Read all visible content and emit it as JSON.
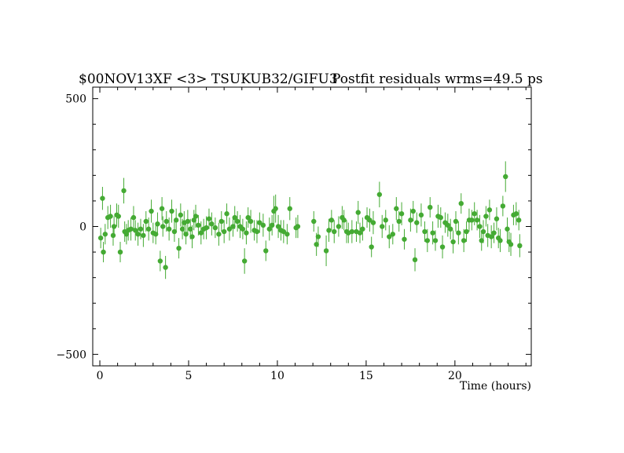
{
  "chart_data": {
    "type": "scatter",
    "title_left": "$00NOV13XF <3> TSUKUB32/GIFU3",
    "title_right": "Postfit residuals wrms=49.5  ps",
    "xlabel": "Time (hours)",
    "ylabel": "",
    "xlim": [
      -0.4,
      24.3
    ],
    "ylim": [
      -545,
      545
    ],
    "xticks": [
      0,
      5,
      10,
      15,
      20
    ],
    "yticks": [
      -500,
      0,
      500
    ],
    "tick_labels_x": [
      "0",
      "5",
      "10",
      "15",
      "20"
    ],
    "tick_labels_y": [
      "−500",
      "0",
      "500"
    ],
    "grid": false,
    "color": "#44aa33",
    "points": [
      [
        0.05,
        -45,
        40
      ],
      [
        0.15,
        110,
        45
      ],
      [
        0.2,
        -100,
        40
      ],
      [
        0.3,
        -30,
        40
      ],
      [
        0.45,
        35,
        45
      ],
      [
        0.6,
        40,
        45
      ],
      [
        0.75,
        -35,
        40
      ],
      [
        0.8,
        0,
        40
      ],
      [
        0.95,
        45,
        45
      ],
      [
        1.05,
        40,
        45
      ],
      [
        1.15,
        -100,
        40
      ],
      [
        1.35,
        140,
        50
      ],
      [
        1.4,
        -20,
        40
      ],
      [
        1.5,
        -30,
        40
      ],
      [
        1.6,
        -15,
        40
      ],
      [
        1.75,
        -10,
        45
      ],
      [
        1.9,
        35,
        45
      ],
      [
        2.0,
        -15,
        40
      ],
      [
        2.15,
        -30,
        45
      ],
      [
        2.3,
        -10,
        40
      ],
      [
        2.45,
        -35,
        45
      ],
      [
        2.6,
        20,
        40
      ],
      [
        2.75,
        -10,
        45
      ],
      [
        2.9,
        60,
        45
      ],
      [
        3.0,
        -25,
        40
      ],
      [
        3.15,
        -30,
        40
      ],
      [
        3.25,
        10,
        45
      ],
      [
        3.4,
        -135,
        40
      ],
      [
        3.5,
        70,
        45
      ],
      [
        3.55,
        0,
        40
      ],
      [
        3.7,
        -160,
        45
      ],
      [
        3.75,
        20,
        40
      ],
      [
        3.9,
        -10,
        45
      ],
      [
        4.05,
        60,
        45
      ],
      [
        4.2,
        -20,
        40
      ],
      [
        4.3,
        25,
        45
      ],
      [
        4.45,
        -85,
        40
      ],
      [
        4.55,
        45,
        45
      ],
      [
        4.65,
        -10,
        40
      ],
      [
        4.75,
        15,
        45
      ],
      [
        4.85,
        -30,
        40
      ],
      [
        4.95,
        20,
        45
      ],
      [
        5.1,
        -10,
        40
      ],
      [
        5.2,
        -40,
        45
      ],
      [
        5.3,
        25,
        40
      ],
      [
        5.4,
        40,
        45
      ],
      [
        5.55,
        5,
        40
      ],
      [
        5.7,
        -25,
        45
      ],
      [
        5.85,
        -10,
        40
      ],
      [
        6.0,
        -5,
        45
      ],
      [
        6.15,
        30,
        40
      ],
      [
        6.3,
        10,
        45
      ],
      [
        6.5,
        -5,
        40
      ],
      [
        6.7,
        -30,
        45
      ],
      [
        6.85,
        20,
        40
      ],
      [
        7.0,
        -20,
        45
      ],
      [
        7.15,
        50,
        40
      ],
      [
        7.3,
        -10,
        45
      ],
      [
        7.5,
        0,
        40
      ],
      [
        7.6,
        35,
        45
      ],
      [
        7.75,
        20,
        40
      ],
      [
        7.9,
        0,
        45
      ],
      [
        8.05,
        -10,
        40
      ],
      [
        8.15,
        -135,
        50
      ],
      [
        8.25,
        -25,
        45
      ],
      [
        8.35,
        35,
        40
      ],
      [
        8.5,
        20,
        45
      ],
      [
        8.7,
        -15,
        40
      ],
      [
        8.85,
        -20,
        45
      ],
      [
        9.0,
        15,
        40
      ],
      [
        9.2,
        5,
        45
      ],
      [
        9.35,
        -95,
        40
      ],
      [
        9.55,
        -10,
        45
      ],
      [
        9.7,
        5,
        40
      ],
      [
        9.8,
        60,
        60
      ],
      [
        9.9,
        70,
        55
      ],
      [
        10.05,
        0,
        45
      ],
      [
        10.2,
        -15,
        40
      ],
      [
        10.35,
        -20,
        45
      ],
      [
        10.55,
        -30,
        40
      ],
      [
        10.7,
        70,
        45
      ],
      [
        11.05,
        -5,
        40
      ],
      [
        11.15,
        0,
        45
      ],
      [
        12.05,
        20,
        40
      ],
      [
        12.2,
        -70,
        45
      ],
      [
        12.3,
        -40,
        40
      ],
      [
        12.75,
        -95,
        60
      ],
      [
        12.9,
        -15,
        45
      ],
      [
        13.05,
        25,
        40
      ],
      [
        13.2,
        -20,
        45
      ],
      [
        13.45,
        0,
        40
      ],
      [
        13.65,
        35,
        45
      ],
      [
        13.75,
        25,
        40
      ],
      [
        13.9,
        -20,
        45
      ],
      [
        14.0,
        -25,
        40
      ],
      [
        14.2,
        -20,
        45
      ],
      [
        14.45,
        -20,
        40
      ],
      [
        14.55,
        55,
        45
      ],
      [
        14.65,
        -25,
        40
      ],
      [
        14.8,
        -10,
        45
      ],
      [
        15.05,
        35,
        40
      ],
      [
        15.2,
        25,
        45
      ],
      [
        15.3,
        -80,
        40
      ],
      [
        15.4,
        15,
        45
      ],
      [
        15.75,
        125,
        50
      ],
      [
        15.9,
        0,
        45
      ],
      [
        16.1,
        25,
        40
      ],
      [
        16.3,
        -40,
        45
      ],
      [
        16.5,
        -30,
        40
      ],
      [
        16.7,
        70,
        45
      ],
      [
        16.85,
        20,
        40
      ],
      [
        17.0,
        50,
        45
      ],
      [
        17.15,
        -50,
        40
      ],
      [
        17.5,
        25,
        45
      ],
      [
        17.65,
        60,
        40
      ],
      [
        17.75,
        -130,
        45
      ],
      [
        17.85,
        15,
        40
      ],
      [
        18.1,
        45,
        45
      ],
      [
        18.3,
        -20,
        40
      ],
      [
        18.45,
        -55,
        45
      ],
      [
        18.6,
        75,
        40
      ],
      [
        18.75,
        -25,
        45
      ],
      [
        18.9,
        -55,
        40
      ],
      [
        19.05,
        40,
        45
      ],
      [
        19.2,
        35,
        40
      ],
      [
        19.3,
        -80,
        45
      ],
      [
        19.45,
        15,
        40
      ],
      [
        19.6,
        5,
        45
      ],
      [
        19.75,
        -10,
        40
      ],
      [
        19.9,
        -60,
        45
      ],
      [
        20.05,
        20,
        40
      ],
      [
        20.2,
        -25,
        45
      ],
      [
        20.35,
        90,
        40
      ],
      [
        20.5,
        -55,
        45
      ],
      [
        20.65,
        -20,
        40
      ],
      [
        20.8,
        25,
        45
      ],
      [
        20.95,
        25,
        40
      ],
      [
        21.1,
        50,
        45
      ],
      [
        21.25,
        25,
        40
      ],
      [
        21.4,
        0,
        45
      ],
      [
        21.5,
        -55,
        40
      ],
      [
        21.6,
        -20,
        45
      ],
      [
        21.75,
        40,
        40
      ],
      [
        21.85,
        -35,
        45
      ],
      [
        21.95,
        65,
        40
      ],
      [
        22.05,
        -40,
        45
      ],
      [
        22.2,
        -25,
        40
      ],
      [
        22.35,
        30,
        45
      ],
      [
        22.45,
        -45,
        40
      ],
      [
        22.55,
        -55,
        45
      ],
      [
        22.7,
        80,
        40
      ],
      [
        22.85,
        195,
        60
      ],
      [
        22.95,
        -10,
        45
      ],
      [
        23.05,
        -60,
        40
      ],
      [
        23.15,
        -70,
        45
      ],
      [
        23.3,
        45,
        40
      ],
      [
        23.45,
        50,
        45
      ],
      [
        23.6,
        25,
        40
      ],
      [
        23.65,
        -75,
        45
      ]
    ]
  }
}
